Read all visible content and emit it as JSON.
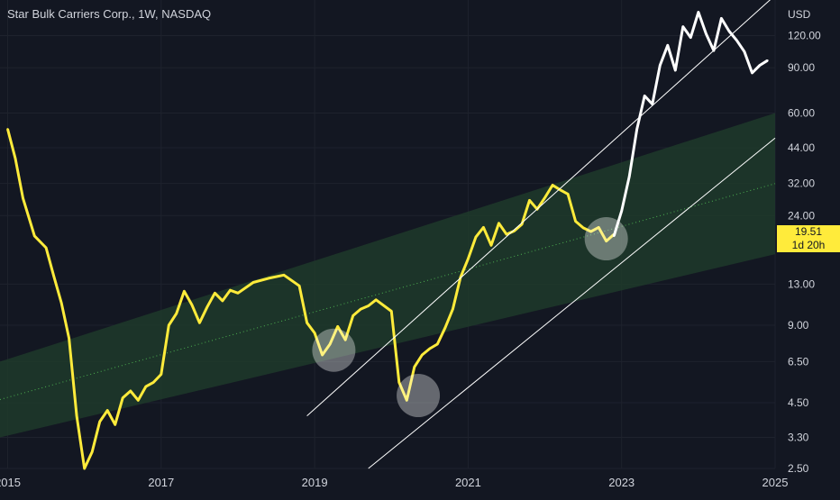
{
  "header": {
    "title": "Star Bulk Carriers Corp., 1W, NASDAQ",
    "currency": "USD"
  },
  "price_tag": {
    "price": "19.51",
    "countdown": "1d 20h"
  },
  "colors": {
    "background": "#131722",
    "price_line": "#ffeb3b",
    "projection": "#ffffff",
    "channel_fill": "#1f3a2a",
    "trendline": "#ffffff",
    "axis_text": "#d1d4dc",
    "grid": "#1e222d"
  },
  "chart_data": {
    "type": "line",
    "title": "Star Bulk Carriers Corp., 1W, NASDAQ",
    "xlabel": "",
    "ylabel": "USD",
    "y_scale": "log",
    "ylim": [
      2.5,
      165
    ],
    "xlim": [
      2014.9,
      2025.0
    ],
    "x_ticks": [
      "2015",
      "2017",
      "2019",
      "2021",
      "2023",
      "2025"
    ],
    "y_ticks": [
      "120.00",
      "90.00",
      "60.00",
      "44.00",
      "32.00",
      "24.00",
      "13.00",
      "9.00",
      "6.50",
      "4.50",
      "3.30",
      "2.50"
    ],
    "series": [
      {
        "x": [
          2015.0,
          2015.1,
          2015.2,
          2015.35,
          2015.5,
          2015.6,
          2015.7,
          2015.8,
          2015.9,
          2016.0,
          2016.1,
          2016.2,
          2016.3,
          2016.4,
          2016.5,
          2016.6,
          2016.7,
          2016.8,
          2016.9,
          2017.0,
          2017.1,
          2017.2,
          2017.3,
          2017.4,
          2017.5,
          2017.6,
          2017.7,
          2017.8,
          2017.9,
          2018.0,
          2018.2,
          2018.4,
          2018.6,
          2018.8,
          2018.9,
          2019.0,
          2019.1,
          2019.2,
          2019.3,
          2019.4,
          2019.5,
          2019.6,
          2019.7,
          2019.8,
          2020.0,
          2020.1,
          2020.2,
          2020.3,
          2020.4,
          2020.5,
          2020.6,
          2020.7,
          2020.8,
          2020.9,
          2021.0,
          2021.1,
          2021.2,
          2021.3,
          2021.4,
          2021.5,
          2021.6,
          2021.7,
          2021.8,
          2021.9,
          2022.0,
          2022.1,
          2022.2,
          2022.3,
          2022.4,
          2022.5,
          2022.6,
          2022.7,
          2022.8,
          2022.9
        ],
        "values": [
          52,
          40,
          28,
          20,
          18,
          14,
          11,
          8,
          4,
          2.5,
          2.9,
          3.8,
          4.2,
          3.7,
          4.7,
          5.0,
          4.6,
          5.2,
          5.4,
          5.8,
          9.0,
          10.0,
          12.2,
          10.8,
          9.2,
          10.6,
          12.0,
          11.2,
          12.3,
          12.0,
          13.2,
          13.7,
          14.1,
          12.8,
          9.2,
          8.4,
          6.9,
          7.6,
          8.9,
          7.9,
          9.8,
          10.4,
          10.7,
          11.3,
          10.2,
          5.4,
          4.6,
          6.2,
          6.9,
          7.3,
          7.6,
          8.8,
          10.4,
          13.8,
          16.3,
          19.8,
          21.6,
          18.4,
          22.4,
          20.3,
          20.9,
          22.2,
          27.5,
          25.4,
          28.2,
          31.5,
          30.2,
          29.1,
          22.8,
          21.5,
          20.8,
          21.6,
          19.1,
          20.3
        ]
      },
      {
        "x": [
          2022.9,
          2023.0,
          2023.1,
          2023.2,
          2023.3,
          2023.4,
          2023.5,
          2023.6,
          2023.7,
          2023.8,
          2023.9,
          2024.0,
          2024.1,
          2024.2,
          2024.3,
          2024.4,
          2024.5,
          2024.6,
          2024.7,
          2024.8,
          2024.9
        ],
        "values": [
          20,
          25,
          34,
          52,
          70,
          65,
          92,
          110,
          88,
          130,
          118,
          148,
          122,
          105,
          140,
          125,
          115,
          104,
          86,
          92,
          96
        ]
      }
    ],
    "annotations": {
      "circles": [
        {
          "x": 2019.25,
          "y": 7.2
        },
        {
          "x": 2020.35,
          "y": 4.8
        },
        {
          "x": 2022.8,
          "y": 19.5
        }
      ],
      "channel": {
        "lower_start": [
          2014.9,
          3.3
        ],
        "lower_end": [
          2025.0,
          17.0
        ],
        "upper_start": [
          2014.9,
          6.5
        ],
        "upper_end": [
          2025.0,
          60.0
        ]
      },
      "parallel_lines": [
        {
          "start": [
            2018.9,
            4.0
          ],
          "end": [
            2025.0,
            172.0
          ]
        },
        {
          "start": [
            2019.7,
            2.5
          ],
          "end": [
            2025.0,
            48.0
          ]
        }
      ]
    }
  }
}
